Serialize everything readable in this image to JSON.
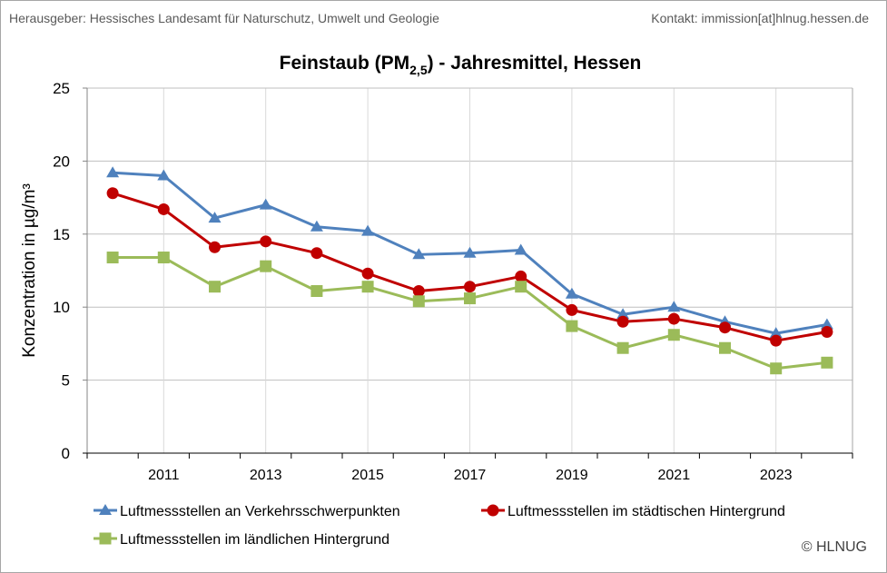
{
  "header": {
    "publisher": "Herausgeber:  Hessisches Landesamt für Naturschutz, Umwelt und Geologie",
    "contact": "Kontakt: immission[at]hlnug.hessen.de"
  },
  "copyright": "© HLNUG",
  "chart_data": {
    "type": "line",
    "title": "Feinstaub (PM",
    "title_subscript": "2,5",
    "title_suffix": ") - Jahresmittel, Hessen",
    "xlabel": "",
    "ylabel": "Konzentration in µg/m³",
    "x": [
      2010,
      2011,
      2012,
      2013,
      2014,
      2015,
      2016,
      2017,
      2018,
      2019,
      2020,
      2021,
      2022,
      2023,
      2024
    ],
    "x_tick_labels": [
      "2011",
      "2013",
      "2015",
      "2017",
      "2019",
      "2021",
      "2023"
    ],
    "ylim": [
      0,
      25
    ],
    "y_ticks": [
      0,
      5,
      10,
      15,
      20,
      25
    ],
    "grid": true,
    "legend_position": "bottom",
    "series": [
      {
        "name": "Luftmessstellen an Verkehrsschwerpunkten",
        "marker": "triangle",
        "color": "#4f81bd",
        "values": [
          19.2,
          19.0,
          16.1,
          17.0,
          15.5,
          15.2,
          13.6,
          13.7,
          13.9,
          10.9,
          9.5,
          10.0,
          9.0,
          8.2,
          8.8
        ]
      },
      {
        "name": "Luftmessstellen im städtischen Hintergrund",
        "marker": "circle",
        "color": "#c00000",
        "values": [
          17.8,
          16.7,
          14.1,
          14.5,
          13.7,
          12.3,
          11.1,
          11.4,
          12.1,
          9.8,
          9.0,
          9.2,
          8.6,
          7.7,
          8.3
        ]
      },
      {
        "name": "Luftmessstellen im ländlichen Hintergrund",
        "marker": "square",
        "color": "#9bbb59",
        "values": [
          13.4,
          13.4,
          11.4,
          12.8,
          11.1,
          11.4,
          10.4,
          10.6,
          11.4,
          8.7,
          7.2,
          8.1,
          7.2,
          5.8,
          6.2
        ]
      }
    ]
  }
}
